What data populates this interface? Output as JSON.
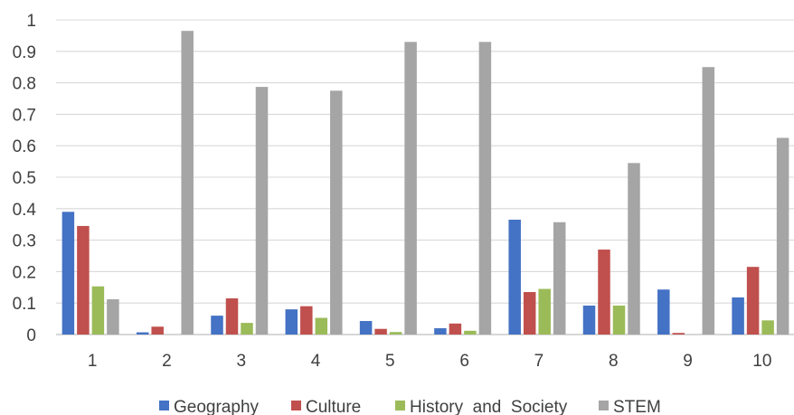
{
  "chart_data": {
    "type": "bar",
    "title": "",
    "xlabel": "",
    "ylabel": "",
    "categories": [
      "1",
      "2",
      "3",
      "4",
      "5",
      "6",
      "7",
      "8",
      "9",
      "10"
    ],
    "ylim": [
      0,
      1
    ],
    "yticks": [
      "0",
      "0.1",
      "0.2",
      "0.3",
      "0.4",
      "0.5",
      "0.6",
      "0.7",
      "0.8",
      "0.9",
      "1"
    ],
    "grid": true,
    "legend_position": "bottom",
    "series": [
      {
        "name": "Geography",
        "color": "#4472C4",
        "values": [
          0.39,
          0.007,
          0.06,
          0.08,
          0.043,
          0.02,
          0.365,
          0.092,
          0.143,
          0.118
        ]
      },
      {
        "name": "Culture",
        "color": "#C0504D",
        "values": [
          0.345,
          0.025,
          0.115,
          0.09,
          0.018,
          0.035,
          0.135,
          0.27,
          0.005,
          0.215
        ]
      },
      {
        "name": "History  and  Society",
        "color": "#9BBB59",
        "values": [
          0.153,
          0.0,
          0.037,
          0.053,
          0.008,
          0.012,
          0.145,
          0.092,
          0.0,
          0.045
        ]
      },
      {
        "name": "STEM",
        "color": "#A5A5A5",
        "values": [
          0.112,
          0.965,
          0.787,
          0.775,
          0.93,
          0.93,
          0.357,
          0.545,
          0.85,
          0.625
        ]
      }
    ]
  }
}
